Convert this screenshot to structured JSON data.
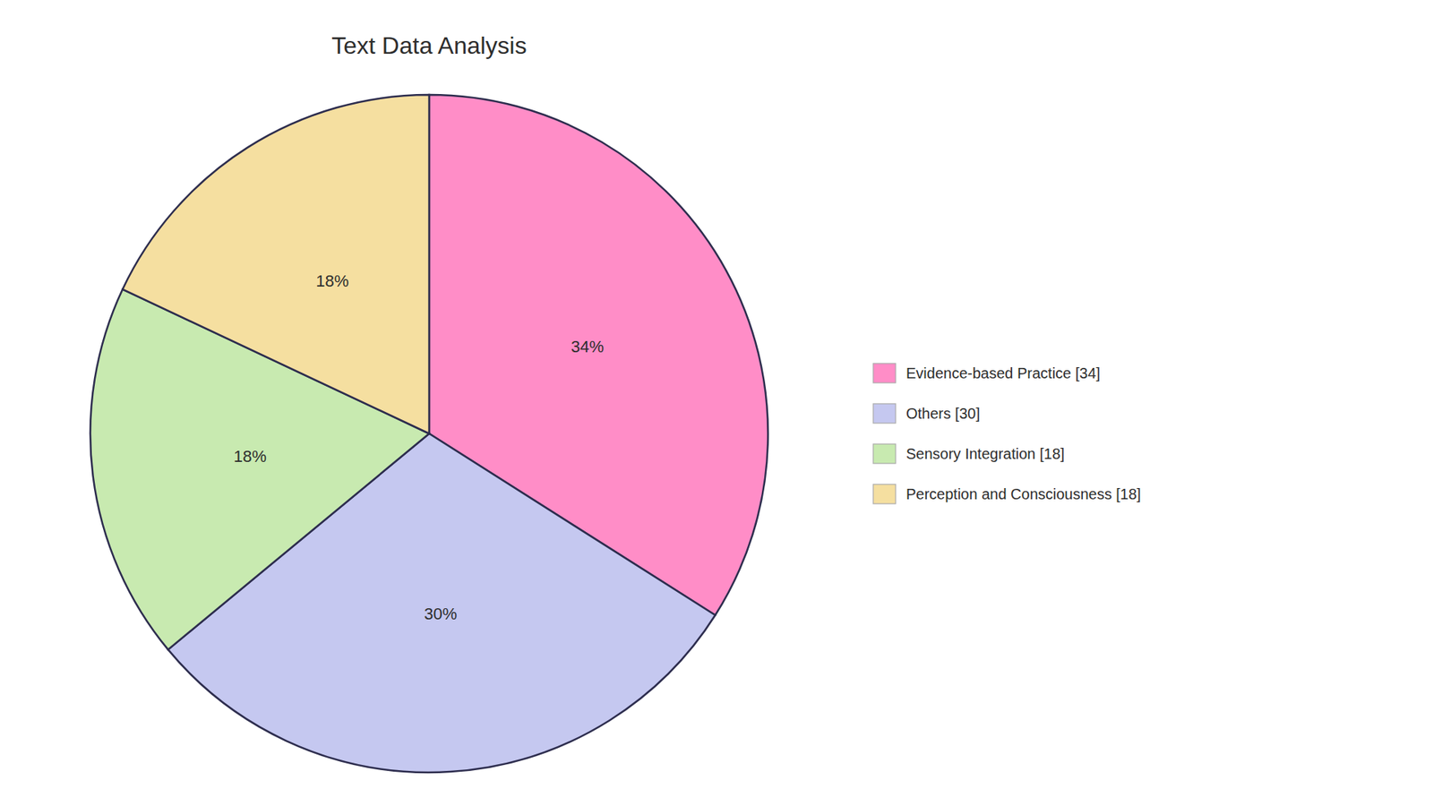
{
  "chart_data": {
    "type": "pie",
    "title": "Text Data Analysis",
    "categories": [
      "Evidence-based Practice [34]",
      "Others [30]",
      "Sensory Integration [18]",
      "Perception and Consciousness [18]"
    ],
    "values": [
      34,
      30,
      18,
      18
    ],
    "value_labels": [
      "34%",
      "30%",
      "18%",
      "18%"
    ],
    "colors": [
      "#FF8DC7",
      "#C5C8F0",
      "#C8EAB0",
      "#F5DFA0"
    ],
    "data_labels": true,
    "legend": "right"
  }
}
